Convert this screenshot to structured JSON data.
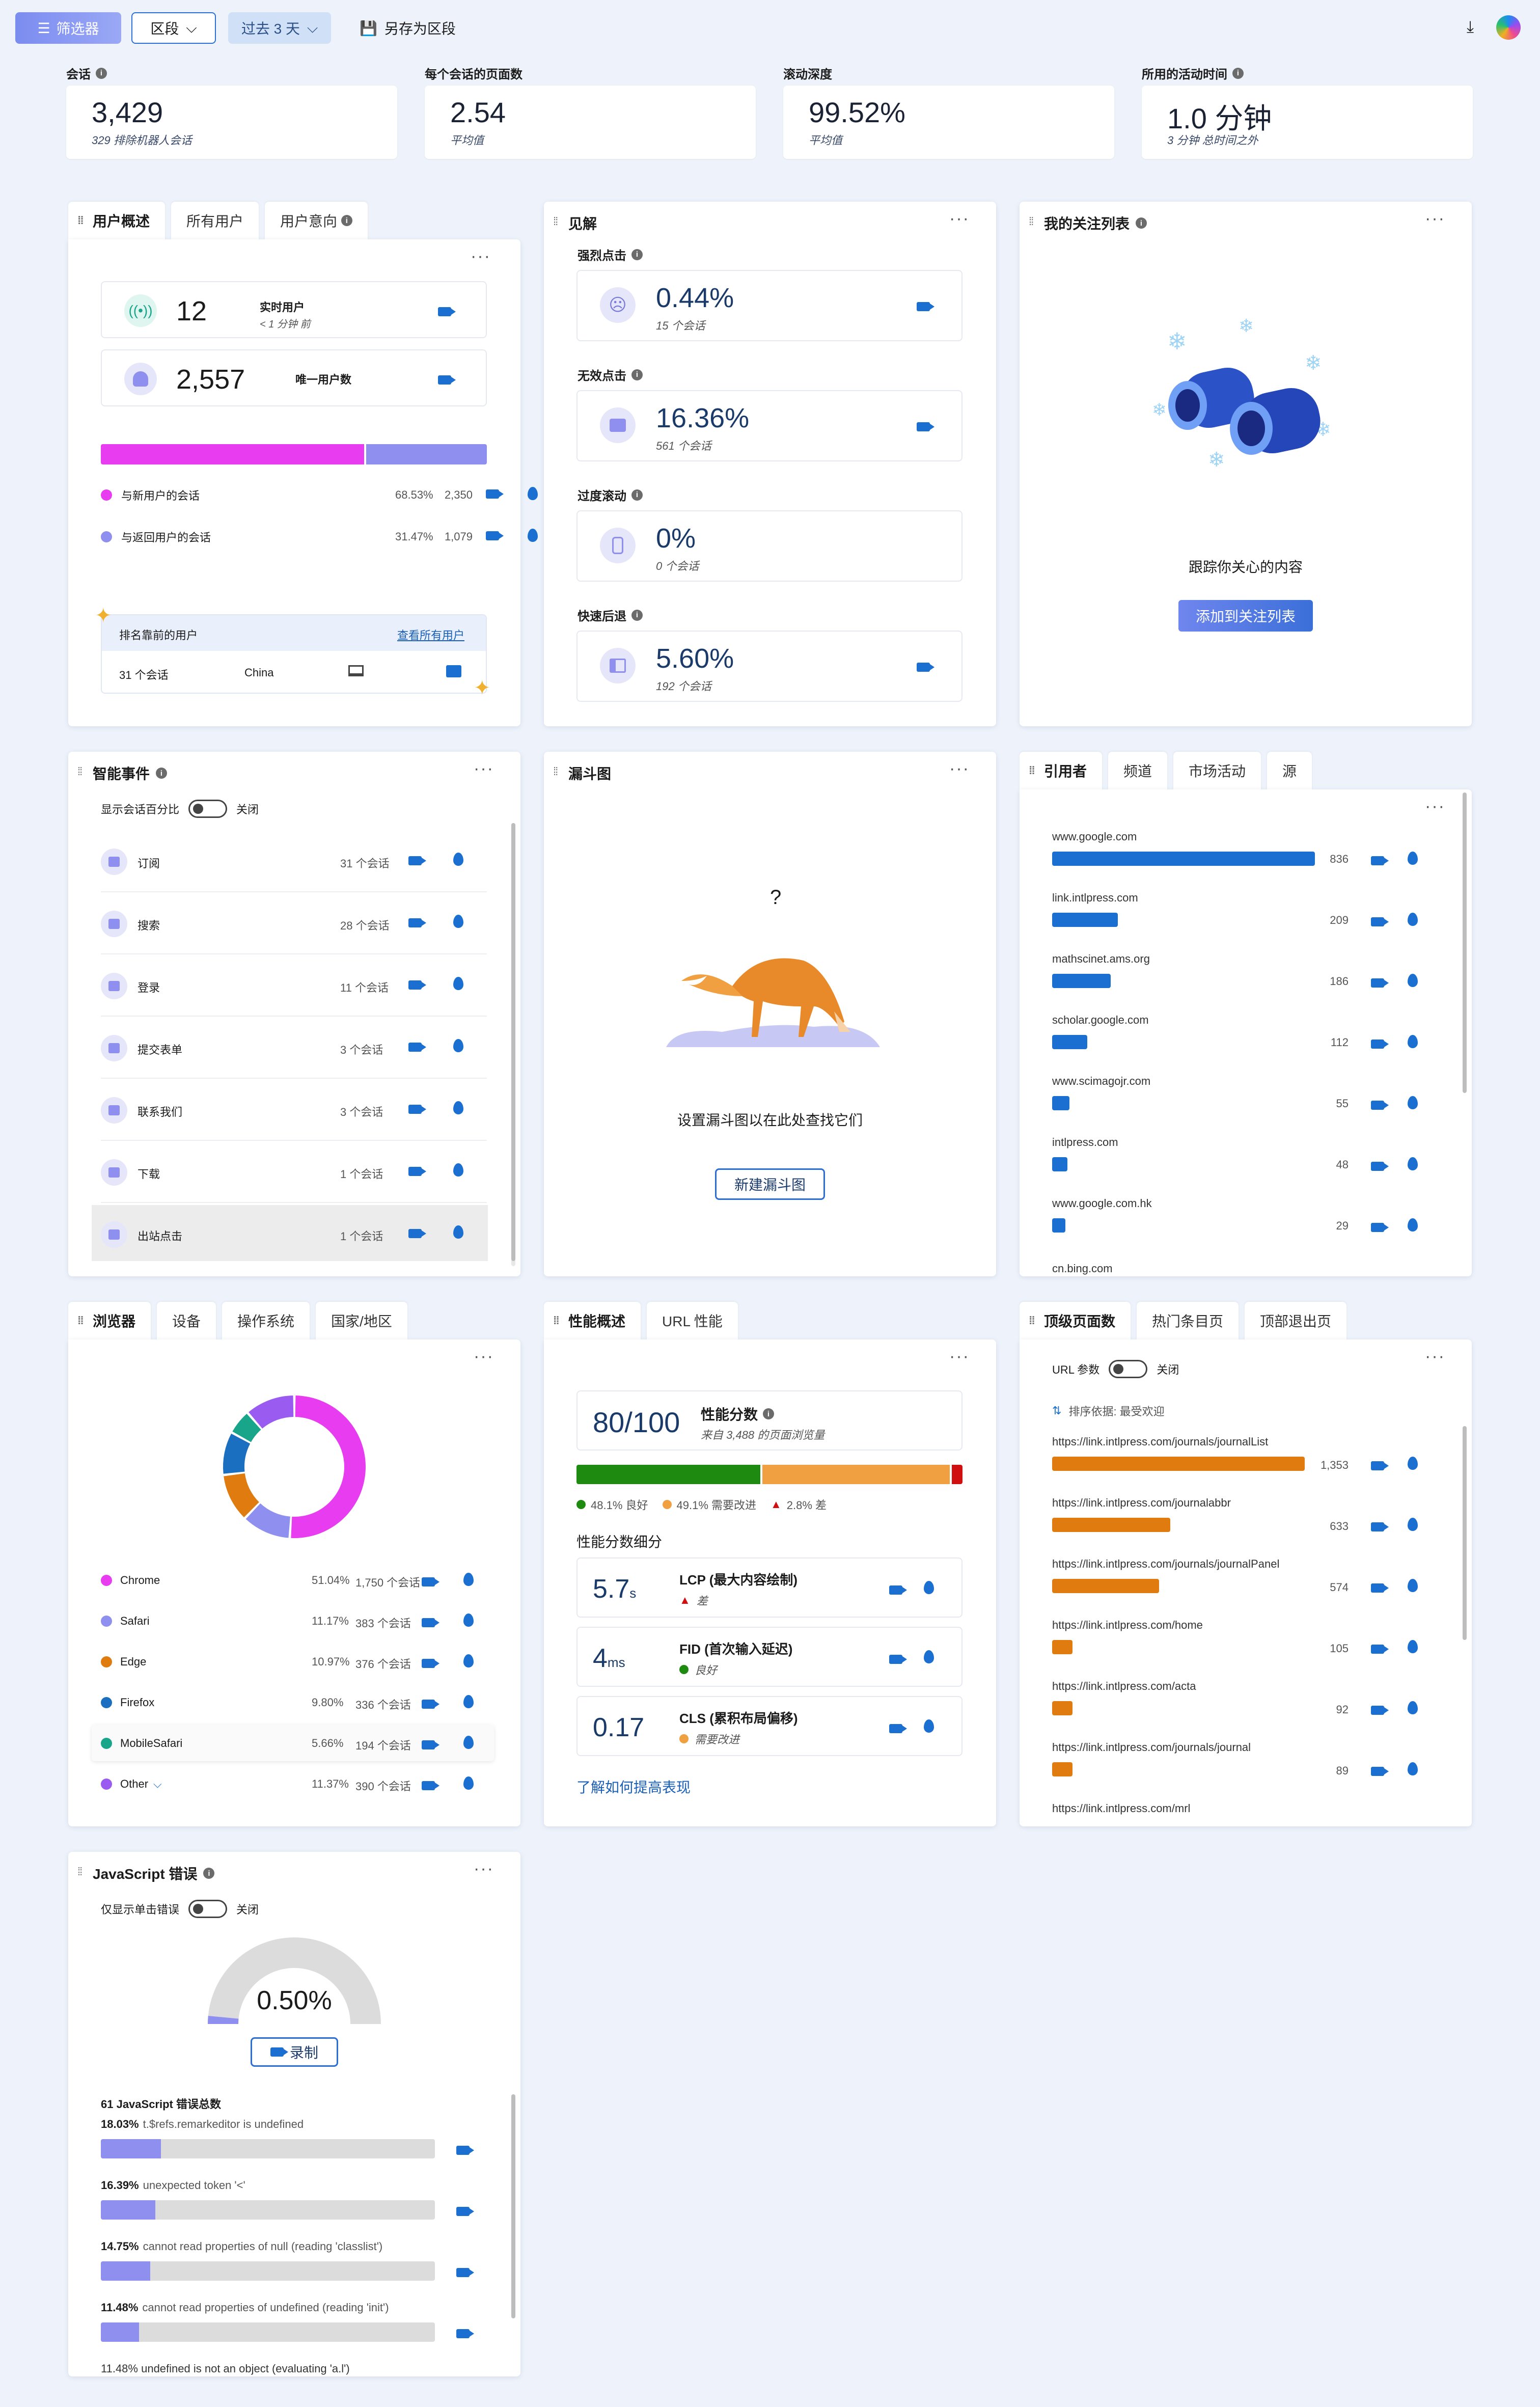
{
  "toolbar": {
    "filter": "筛选器",
    "segment": "区段",
    "range": "过去 3 天",
    "save": "另存为区段"
  },
  "kpis": [
    {
      "label": "会话",
      "value": "3,429",
      "sub": "329 排除机器人会话"
    },
    {
      "label": "每个会话的页面数",
      "value": "2.54",
      "sub": "平均值"
    },
    {
      "label": "滚动深度",
      "value": "99.52%",
      "sub": "平均值"
    },
    {
      "label": "所用的活动时间",
      "value": "1.0 分钟",
      "sub": "3 分钟 总时间之外"
    }
  ],
  "users": {
    "tabs": [
      "用户概述",
      "所有用户",
      "用户意向"
    ],
    "live_value": "12",
    "live_label": "实时用户",
    "live_sub": "< 1 分钟 前",
    "unique_value": "2,557",
    "unique_label": "唯一用户数",
    "new_label": "与新用户的会话",
    "new_pct": "68.53%",
    "new_count": "2,350",
    "new_frac": 0.6853,
    "ret_label": "与返回用户的会话",
    "ret_pct": "31.47%",
    "ret_count": "1,079",
    "top_title": "排名靠前的用户",
    "top_link": "查看所有用户",
    "top_sessions": "31 个会话",
    "top_country": "China"
  },
  "insights": {
    "title": "见解",
    "items": [
      {
        "label": "强烈点击",
        "value": "0.44%",
        "sub": "15 个会话"
      },
      {
        "label": "无效点击",
        "value": "16.36%",
        "sub": "561 个会话"
      },
      {
        "label": "过度滚动",
        "value": "0%",
        "sub": "0 个会话"
      },
      {
        "label": "快速后退",
        "value": "5.60%",
        "sub": "192 个会话"
      }
    ]
  },
  "watchlist": {
    "title": "我的关注列表",
    "text": "跟踪你关心的内容",
    "button": "添加到关注列表"
  },
  "smart": {
    "title": "智能事件",
    "toggle_label": "显示会话百分比",
    "toggle_state": "关闭",
    "items": [
      {
        "label": "订阅",
        "count": "31 个会话"
      },
      {
        "label": "搜索",
        "count": "28 个会话"
      },
      {
        "label": "登录",
        "count": "11 个会话"
      },
      {
        "label": "提交表单",
        "count": "3 个会话"
      },
      {
        "label": "联系我们",
        "count": "3 个会话"
      },
      {
        "label": "下载",
        "count": "1 个会话"
      },
      {
        "label": "出站点击",
        "count": "1 个会话"
      }
    ]
  },
  "funnel": {
    "title": "漏斗图",
    "q": "?",
    "text": "设置漏斗图以在此处查找它们",
    "button": "新建漏斗图"
  },
  "referrers": {
    "tabs": [
      "引用者",
      "频道",
      "市场活动",
      "源"
    ],
    "items": [
      {
        "label": "www.google.com",
        "value": 836
      },
      {
        "label": "link.intlpress.com",
        "value": 209
      },
      {
        "label": "mathscinet.ams.org",
        "value": 186
      },
      {
        "label": "scholar.google.com",
        "value": 112
      },
      {
        "label": "www.scimagojr.com",
        "value": 55
      },
      {
        "label": "intlpress.com",
        "value": 48
      },
      {
        "label": "www.google.com.hk",
        "value": 29
      }
    ],
    "cutoff": "cn.bing.com"
  },
  "browsers": {
    "tabs": [
      "浏览器",
      "设备",
      "操作系统",
      "国家/地区"
    ],
    "items": [
      {
        "label": "Chrome",
        "pct": "51.04%",
        "count": "1,750 个会话",
        "color": "#e83cf0",
        "share": 51.04
      },
      {
        "label": "Safari",
        "pct": "11.17%",
        "count": "383 个会话",
        "color": "#8f8ff0",
        "share": 11.17
      },
      {
        "label": "Edge",
        "pct": "10.97%",
        "count": "376 个会话",
        "color": "#e07b10",
        "share": 10.97
      },
      {
        "label": "Firefox",
        "pct": "9.80%",
        "count": "336 个会话",
        "color": "#1a6fc0",
        "share": 9.8
      },
      {
        "label": "MobileSafari",
        "pct": "5.66%",
        "count": "194 个会话",
        "color": "#18a58a",
        "share": 5.66
      },
      {
        "label": "Other",
        "pct": "11.37%",
        "count": "390 个会话",
        "color": "#9a5cf0",
        "share": 11.37
      }
    ]
  },
  "perf": {
    "tabs": [
      "性能概述",
      "URL 性能"
    ],
    "score": "80/100",
    "score_label": "性能分数",
    "score_sub": "来自 3,488 的页面浏览量",
    "good": "48.1% 良好",
    "mid": "49.1% 需要改进",
    "bad": "2.8% 差",
    "good_frac": 0.481,
    "mid_frac": 0.491,
    "bad_frac": 0.028,
    "breakdown": "性能分数细分",
    "link": "了解如何提高表现",
    "metrics": [
      {
        "value": "5.7",
        "unit": "s",
        "name": "LCP (最大内容绘制)",
        "status": "差"
      },
      {
        "value": "4",
        "unit": "ms",
        "name": "FID (首次输入延迟)",
        "status": "良好"
      },
      {
        "value": "0.17",
        "unit": "",
        "name": "CLS (累积布局偏移)",
        "status": "需要改进"
      }
    ]
  },
  "pages": {
    "tabs": [
      "顶级页面数",
      "热门条目页",
      "顶部退出页"
    ],
    "toggle_label": "URL 参数",
    "toggle_state": "关闭",
    "sort": "排序依据: 最受欢迎",
    "items": [
      {
        "label": "https://link.intlpress.com/journals/journalList",
        "value": 1353,
        "text": "1,353"
      },
      {
        "label": "https://link.intlpress.com/journalabbr",
        "value": 633,
        "text": "633"
      },
      {
        "label": "https://link.intlpress.com/journals/journalPanel",
        "value": 574,
        "text": "574"
      },
      {
        "label": "https://link.intlpress.com/home",
        "value": 105,
        "text": "105"
      },
      {
        "label": "https://link.intlpress.com/acta",
        "value": 92,
        "text": "92"
      },
      {
        "label": "https://link.intlpress.com/journals/journal",
        "value": 89,
        "text": "89"
      }
    ],
    "cutoff": "https://link.intlpress.com/mrl"
  },
  "js": {
    "title": "JavaScript 错误",
    "toggle_label": "仅显示单击错误",
    "toggle_state": "关闭",
    "value": "0.50%",
    "gauge_frac": 0.005,
    "button": "录制",
    "total": "61 JavaScript 错误总数",
    "items": [
      {
        "pct": "18.03%",
        "msg": "t.$refs.remarkeditor is undefined",
        "frac": 0.1803
      },
      {
        "pct": "16.39%",
        "msg": "unexpected token '<'",
        "frac": 0.1639
      },
      {
        "pct": "14.75%",
        "msg": "cannot read properties of null (reading 'classlist')",
        "frac": 0.1475
      },
      {
        "pct": "11.48%",
        "msg": "cannot read properties of undefined (reading 'init')",
        "frac": 0.1148
      }
    ],
    "cutoff": "11.48% undefined is not an object (evaluating 'a.l')"
  }
}
